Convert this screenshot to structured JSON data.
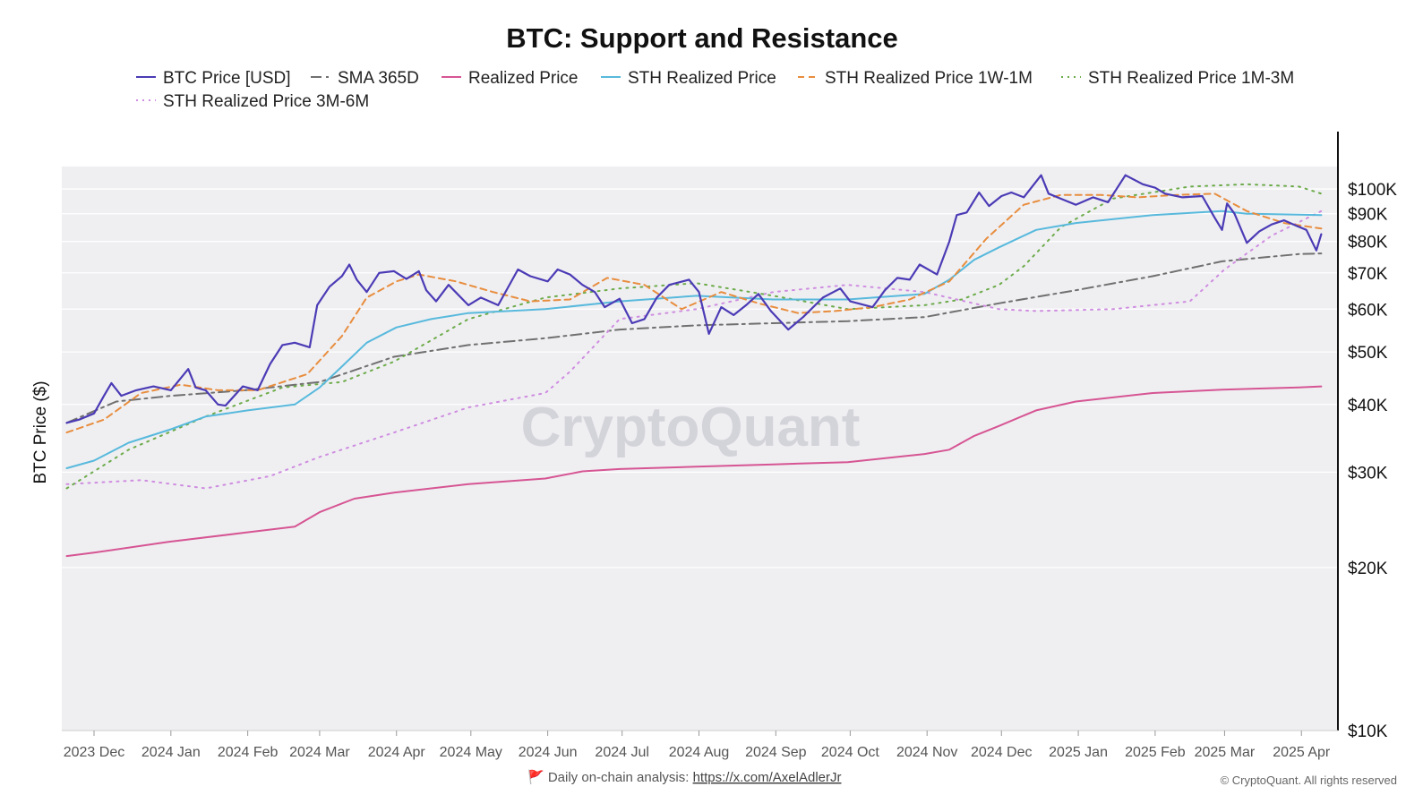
{
  "chart_data": {
    "type": "line",
    "title": "BTC: Support and Resistance",
    "ylabel": "BTC Price ($)",
    "y_scale": "log",
    "ylim": [
      10000,
      110000
    ],
    "grid": true,
    "legend_position": "top",
    "x_ticks": [
      {
        "label": "2023 Dec",
        "date": "2023-12-01"
      },
      {
        "label": "2024 Jan",
        "date": "2024-01-01"
      },
      {
        "label": "2024 Feb",
        "date": "2024-02-01"
      },
      {
        "label": "2024 Mar",
        "date": "2024-03-01"
      },
      {
        "label": "2024 Apr",
        "date": "2024-04-01"
      },
      {
        "label": "2024 May",
        "date": "2024-05-01"
      },
      {
        "label": "2024 Jun",
        "date": "2024-06-01"
      },
      {
        "label": "2024 Jul",
        "date": "2024-07-01"
      },
      {
        "label": "2024 Aug",
        "date": "2024-08-01"
      },
      {
        "label": "2024 Sep",
        "date": "2024-09-01"
      },
      {
        "label": "2024 Oct",
        "date": "2024-10-01"
      },
      {
        "label": "2024 Nov",
        "date": "2024-11-01"
      },
      {
        "label": "2024 Dec",
        "date": "2024-12-01"
      },
      {
        "label": "2025 Jan",
        "date": "2025-01-01"
      },
      {
        "label": "2025 Feb",
        "date": "2025-02-01"
      },
      {
        "label": "2025 Mar",
        "date": "2025-03-01"
      },
      {
        "label": "2025 Apr",
        "date": "2025-04-01"
      }
    ],
    "y_ticks": [
      {
        "label": "$10K",
        "value": 10000
      },
      {
        "label": "$20K",
        "value": 20000
      },
      {
        "label": "$30K",
        "value": 30000
      },
      {
        "label": "$40K",
        "value": 40000
      },
      {
        "label": "$50K",
        "value": 50000
      },
      {
        "label": "$60K",
        "value": 60000
      },
      {
        "label": "$70K",
        "value": 70000
      },
      {
        "label": "$80K",
        "value": 80000
      },
      {
        "label": "$90K",
        "value": 90000
      },
      {
        "label": "$100K",
        "value": 100000
      }
    ],
    "series": [
      {
        "name": "BTC Price [USD]",
        "color": "#4b3bb5",
        "dash": "solid",
        "width": 2.2,
        "x": [
          "2023-11-20",
          "2023-11-25",
          "2023-12-01",
          "2023-12-05",
          "2023-12-08",
          "2023-12-12",
          "2023-12-18",
          "2023-12-25",
          "2024-01-01",
          "2024-01-08",
          "2024-01-11",
          "2024-01-15",
          "2024-01-20",
          "2024-01-23",
          "2024-01-30",
          "2024-02-05",
          "2024-02-10",
          "2024-02-15",
          "2024-02-20",
          "2024-02-26",
          "2024-02-29",
          "2024-03-05",
          "2024-03-10",
          "2024-03-13",
          "2024-03-16",
          "2024-03-20",
          "2024-03-25",
          "2024-03-31",
          "2024-04-05",
          "2024-04-10",
          "2024-04-13",
          "2024-04-17",
          "2024-04-22",
          "2024-04-30",
          "2024-05-05",
          "2024-05-12",
          "2024-05-20",
          "2024-05-25",
          "2024-06-01",
          "2024-06-05",
          "2024-06-10",
          "2024-06-15",
          "2024-06-20",
          "2024-06-24",
          "2024-06-30",
          "2024-07-05",
          "2024-07-10",
          "2024-07-15",
          "2024-07-20",
          "2024-07-28",
          "2024-08-01",
          "2024-08-05",
          "2024-08-10",
          "2024-08-15",
          "2024-08-20",
          "2024-08-25",
          "2024-08-30",
          "2024-09-06",
          "2024-09-12",
          "2024-09-20",
          "2024-09-27",
          "2024-10-01",
          "2024-10-10",
          "2024-10-15",
          "2024-10-20",
          "2024-10-25",
          "2024-10-29",
          "2024-11-05",
          "2024-11-10",
          "2024-11-13",
          "2024-11-17",
          "2024-11-22",
          "2024-11-26",
          "2024-12-01",
          "2024-12-05",
          "2024-12-10",
          "2024-12-17",
          "2024-12-20",
          "2024-12-26",
          "2024-12-31",
          "2025-01-07",
          "2025-01-13",
          "2025-01-20",
          "2025-01-27",
          "2025-02-01",
          "2025-02-05",
          "2025-02-12",
          "2025-02-20",
          "2025-02-25",
          "2025-02-28",
          "2025-03-02",
          "2025-03-05",
          "2025-03-10",
          "2025-03-15",
          "2025-03-20",
          "2025-03-25",
          "2025-03-30",
          "2025-04-03",
          "2025-04-07",
          "2025-04-09"
        ],
        "y": [
          37000,
          37500,
          38500,
          41500,
          43800,
          41500,
          42500,
          43200,
          42500,
          46500,
          43000,
          42500,
          40000,
          39800,
          43200,
          42500,
          47500,
          51500,
          52000,
          51000,
          61000,
          66000,
          69000,
          72500,
          68000,
          64500,
          70000,
          70500,
          68200,
          70500,
          65000,
          62000,
          66500,
          61000,
          63000,
          61000,
          71000,
          69000,
          67500,
          71000,
          69500,
          66500,
          64500,
          60500,
          62700,
          56500,
          57500,
          63000,
          66500,
          68000,
          64500,
          54000,
          60500,
          58500,
          61000,
          64000,
          59500,
          55000,
          58000,
          63000,
          65500,
          62000,
          60500,
          65000,
          68500,
          68000,
          72500,
          69500,
          80000,
          89500,
          90500,
          98500,
          93000,
          97000,
          98500,
          96500,
          106000,
          98000,
          95500,
          93500,
          96500,
          94500,
          106000,
          102000,
          100500,
          98000,
          96500,
          97000,
          88500,
          84000,
          94000,
          90000,
          79500,
          83500,
          86000,
          87500,
          85500,
          84000,
          77000,
          82500
        ]
      },
      {
        "name": "SMA 365D",
        "color": "#707070",
        "dash": "dashdot",
        "width": 2,
        "x": [
          "2023-11-20",
          "2023-12-10",
          "2024-01-01",
          "2024-01-31",
          "2024-03-01",
          "2024-03-31",
          "2024-04-30",
          "2024-05-31",
          "2024-06-30",
          "2024-07-31",
          "2024-08-31",
          "2024-09-30",
          "2024-10-31",
          "2024-11-30",
          "2024-12-31",
          "2025-01-31",
          "2025-02-28",
          "2025-03-31",
          "2025-04-09"
        ],
        "y": [
          37000,
          40500,
          41500,
          42500,
          44000,
          49000,
          51500,
          53000,
          55000,
          56000,
          56500,
          57000,
          58000,
          61500,
          65000,
          69000,
          73500,
          75800,
          76000
        ]
      },
      {
        "name": "Realized Price",
        "color": "#d65593",
        "dash": "solid",
        "width": 2,
        "x": [
          "2023-11-20",
          "2023-12-01",
          "2023-12-31",
          "2024-01-31",
          "2024-02-20",
          "2024-03-01",
          "2024-03-15",
          "2024-03-31",
          "2024-04-30",
          "2024-05-31",
          "2024-06-15",
          "2024-06-30",
          "2024-07-31",
          "2024-08-31",
          "2024-09-30",
          "2024-10-31",
          "2024-11-10",
          "2024-11-20",
          "2024-11-30",
          "2024-12-15",
          "2024-12-31",
          "2025-01-31",
          "2025-02-28",
          "2025-03-31",
          "2025-04-09"
        ],
        "y": [
          21000,
          21300,
          22300,
          23200,
          23800,
          25300,
          26800,
          27500,
          28500,
          29200,
          30100,
          30400,
          30700,
          31000,
          31300,
          32400,
          33000,
          35000,
          36500,
          39000,
          40500,
          42000,
          42600,
          43000,
          43200
        ]
      },
      {
        "name": "STH Realized Price",
        "color": "#58b9dc",
        "dash": "solid",
        "width": 2,
        "x": [
          "2023-11-20",
          "2023-12-01",
          "2023-12-15",
          "2024-01-01",
          "2024-01-15",
          "2024-02-01",
          "2024-02-20",
          "2024-03-01",
          "2024-03-10",
          "2024-03-20",
          "2024-04-01",
          "2024-04-15",
          "2024-04-30",
          "2024-05-31",
          "2024-06-30",
          "2024-07-31",
          "2024-08-31",
          "2024-09-30",
          "2024-10-31",
          "2024-11-10",
          "2024-11-20",
          "2024-11-30",
          "2024-12-15",
          "2024-12-31",
          "2025-01-31",
          "2025-02-28",
          "2025-03-10",
          "2025-04-09"
        ],
        "y": [
          30500,
          31500,
          34000,
          36000,
          38000,
          39000,
          40000,
          43000,
          47000,
          52000,
          55500,
          57500,
          59000,
          60000,
          62000,
          63500,
          62500,
          62500,
          64000,
          68000,
          74000,
          78000,
          84000,
          86500,
          89500,
          91000,
          90000,
          89500
        ]
      },
      {
        "name": "STH Realized Price 1W-1M",
        "color": "#e88d3e",
        "dash": "dashed",
        "width": 2,
        "x": [
          "2023-11-20",
          "2023-12-05",
          "2023-12-20",
          "2024-01-05",
          "2024-01-20",
          "2024-02-05",
          "2024-02-25",
          "2024-03-10",
          "2024-03-20",
          "2024-04-01",
          "2024-04-10",
          "2024-04-25",
          "2024-05-10",
          "2024-05-25",
          "2024-06-10",
          "2024-06-25",
          "2024-07-10",
          "2024-07-25",
          "2024-08-10",
          "2024-08-25",
          "2024-09-10",
          "2024-09-25",
          "2024-10-10",
          "2024-10-25",
          "2024-11-10",
          "2024-11-25",
          "2024-12-10",
          "2024-12-25",
          "2025-01-10",
          "2025-01-25",
          "2025-02-10",
          "2025-02-25",
          "2025-03-10",
          "2025-03-25",
          "2025-04-09"
        ],
        "y": [
          35500,
          37500,
          42000,
          43500,
          42500,
          42500,
          45500,
          53500,
          63000,
          67500,
          69500,
          67500,
          64500,
          62000,
          62500,
          68500,
          66500,
          60000,
          64500,
          61500,
          59000,
          59500,
          60500,
          62500,
          67500,
          81000,
          93500,
          97500,
          97500,
          96500,
          97500,
          98000,
          91000,
          86500,
          84500
        ]
      },
      {
        "name": "STH Realized Price 1M-3M",
        "color": "#6dab4a",
        "dash": "dotted",
        "width": 2,
        "x": [
          "2023-11-20",
          "2023-12-15",
          "2024-01-15",
          "2024-02-15",
          "2024-03-10",
          "2024-03-31",
          "2024-04-30",
          "2024-05-31",
          "2024-06-30",
          "2024-07-31",
          "2024-08-31",
          "2024-09-30",
          "2024-10-31",
          "2024-11-15",
          "2024-11-30",
          "2024-12-10",
          "2024-12-25",
          "2025-01-15",
          "2025-02-15",
          "2025-03-10",
          "2025-03-31",
          "2025-04-09"
        ],
        "y": [
          28000,
          33000,
          38000,
          43000,
          44000,
          48000,
          57500,
          63000,
          65500,
          67000,
          63500,
          60000,
          61000,
          62500,
          66500,
          72000,
          85000,
          96000,
          101000,
          102000,
          101000,
          98000
        ]
      },
      {
        "name": "STH Realized Price 3M-6M",
        "color": "#cf8de0",
        "dash": "dotted",
        "width": 2,
        "x": [
          "2023-11-20",
          "2023-12-20",
          "2024-01-15",
          "2024-02-10",
          "2024-03-01",
          "2024-03-31",
          "2024-04-30",
          "2024-05-31",
          "2024-06-10",
          "2024-06-30",
          "2024-07-31",
          "2024-08-31",
          "2024-09-30",
          "2024-10-31",
          "2024-11-30",
          "2024-12-15",
          "2025-01-15",
          "2025-02-15",
          "2025-03-01",
          "2025-03-20",
          "2025-04-09"
        ],
        "y": [
          28500,
          29000,
          28000,
          29500,
          32000,
          35500,
          39500,
          42000,
          46000,
          57500,
          60000,
          64500,
          66500,
          64500,
          60000,
          59500,
          60000,
          62000,
          71000,
          82000,
          91000
        ]
      }
    ]
  },
  "watermark": "CryptoQuant",
  "footer": {
    "prefix": "🚩 Daily on-chain analysis: ",
    "link": "https://x.com/AxelAdlerJr",
    "copyright": "© CryptoQuant. All rights reserved"
  }
}
